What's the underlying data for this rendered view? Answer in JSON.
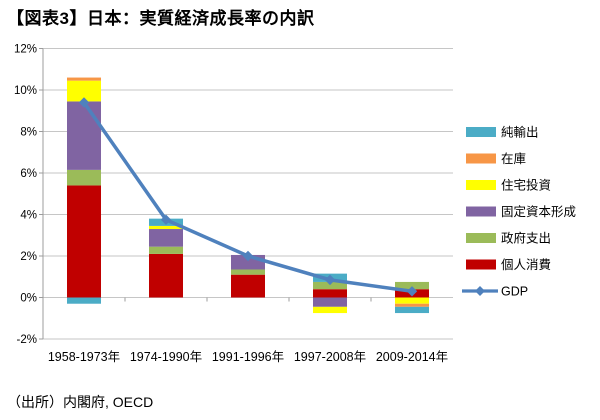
{
  "title": "【図表3】日本：実質経済成長率の内訳",
  "source_note": "（出所）内閣府, OECD",
  "chart_data": {
    "type": "bar",
    "subtype": "stacked-bars-with-line",
    "title": "【図表3】日本：実質経済成長率の内訳",
    "categories": [
      "1958-1973年",
      "1974-1990年",
      "1991-1996年",
      "1997-2008年",
      "2009-2014年"
    ],
    "series": [
      {
        "key": "personal-consumption",
        "name": "個人消費",
        "color": "#C00000",
        "values": [
          5.4,
          2.1,
          1.1,
          0.4,
          0.4
        ]
      },
      {
        "key": "government-spending",
        "name": "政府支出",
        "color": "#9BBB59",
        "values": [
          0.75,
          0.35,
          0.25,
          0.35,
          0.35
        ]
      },
      {
        "key": "fixed-capital-formation",
        "name": "固定資本形成",
        "color": "#8064A2",
        "values": [
          3.3,
          0.85,
          0.7,
          -0.45,
          0
        ]
      },
      {
        "key": "housing-investment",
        "name": "住宅投資",
        "color": "#FFFF00",
        "values": [
          1.0,
          0.15,
          0,
          -0.3,
          -0.3
        ]
      },
      {
        "key": "inventory",
        "name": "在庫",
        "color": "#F79646",
        "values": [
          0.15,
          0,
          0,
          0,
          -0.15
        ]
      },
      {
        "key": "net-exports",
        "name": "純輸出",
        "color": "#4BACC6",
        "values": [
          -0.3,
          0.35,
          0,
          0.4,
          -0.3
        ]
      }
    ],
    "line_series": {
      "key": "gdp",
      "name": "GDP",
      "color": "#4F81BD",
      "values": [
        9.4,
        3.75,
        2.0,
        0.85,
        0.3
      ]
    },
    "legend": [
      "純輸出",
      "在庫",
      "住宅投資",
      "固定資本形成",
      "政府支出",
      "個人消費",
      "GDP"
    ],
    "legend_position": "right",
    "ylim": [
      -2,
      12
    ],
    "y_tick_step": 2,
    "y_tick_labels": [
      "12%",
      "10%",
      "8%",
      "6%",
      "4%",
      "2%",
      "0%",
      "-2%"
    ],
    "y_tick_values": [
      12,
      10,
      8,
      6,
      4,
      2,
      0,
      -2
    ],
    "grid": true,
    "axis_cross_value": 0
  },
  "style_colors": {
    "gridline": "#C6C6C6",
    "axis_line": "#9C9C9C",
    "text": "#000000",
    "background": "#FFFFFF"
  }
}
